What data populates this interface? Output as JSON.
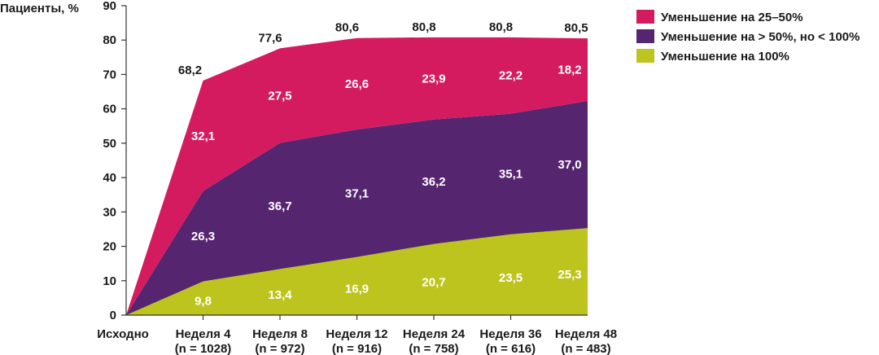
{
  "chart_data": {
    "type": "area",
    "stacked": true,
    "ylabel": "Пациенты, %",
    "ylim": [
      0,
      90
    ],
    "yticks": [
      0,
      10,
      20,
      30,
      40,
      50,
      60,
      70,
      80,
      90
    ],
    "categories": [
      {
        "label": "Исходно",
        "n": ""
      },
      {
        "label": "Неделя 4",
        "n": "(n = 1028)"
      },
      {
        "label": "Неделя 8",
        "n": "(n = 972)"
      },
      {
        "label": "Неделя 12",
        "n": "(n = 916)"
      },
      {
        "label": "Неделя 24",
        "n": "(n = 758)"
      },
      {
        "label": "Неделя 36",
        "n": "(n = 616)"
      },
      {
        "label": "Неделя 48",
        "n": "(n = 483)"
      }
    ],
    "series": [
      {
        "name": "Уменьшение на 100%",
        "color": "#bdc41e",
        "values": [
          0,
          9.8,
          13.4,
          16.9,
          20.7,
          23.5,
          25.3
        ],
        "labels": [
          "",
          "9,8",
          "13,4",
          "16,9",
          "20,7",
          "23,5",
          "25,3"
        ]
      },
      {
        "name": "Уменьшение на > 50%, но < 100%",
        "color": "#55256f",
        "values": [
          0,
          26.3,
          36.7,
          37.1,
          36.2,
          35.1,
          37.0
        ],
        "labels": [
          "",
          "26,3",
          "36,7",
          "37,1",
          "36,2",
          "35,1",
          "37,0"
        ]
      },
      {
        "name": "Уменьшение на 25–50%",
        "color": "#d41b5f",
        "values": [
          0,
          32.1,
          27.5,
          26.6,
          23.9,
          22.2,
          18.2
        ],
        "labels": [
          "",
          "32,1",
          "27,5",
          "26,6",
          "23,9",
          "22,2",
          "18,2"
        ]
      }
    ],
    "totals": [
      "",
      "68,2",
      "77,6",
      "80,6",
      "80,8",
      "80,8",
      "80,5"
    ],
    "legend": {
      "position": "top-right",
      "items": [
        {
          "label": "Уменьшение на 25–50%",
          "color": "#d41b5f"
        },
        {
          "label": "Уменьшение на > 50%, но < 100%",
          "color": "#55256f"
        },
        {
          "label": "Уменьшение на 100%",
          "color": "#bdc41e"
        }
      ]
    }
  }
}
